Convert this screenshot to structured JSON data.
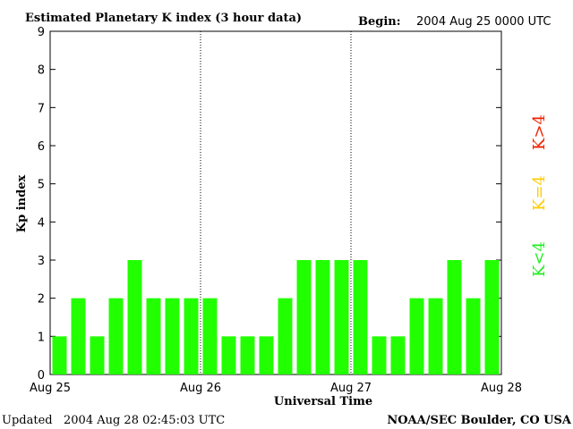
{
  "header": {
    "title": "Estimated Planetary K index (3 hour data)",
    "begin_label": "Begin:",
    "begin_value": "2004 Aug 25 0000 UTC"
  },
  "footer": {
    "updated_label": "Updated",
    "updated_value": "2004 Aug 28 02:45:03 UTC",
    "source": "NOAA/SEC Boulder, CO USA"
  },
  "legend": [
    {
      "label": "K<4",
      "color": "#22ee22"
    },
    {
      "label": "K=4",
      "color": "#ffcc00"
    },
    {
      "label": "K>4",
      "color": "#ee2200"
    }
  ],
  "chart_data": {
    "type": "bar",
    "title": "Estimated Planetary K index (3 hour data)",
    "xlabel": "Universal Time",
    "ylabel": "Kp index",
    "ylim": [
      0,
      9
    ],
    "yticks": [
      0,
      1,
      2,
      3,
      4,
      5,
      6,
      7,
      8,
      9
    ],
    "xticks": [
      "Aug 25",
      "Aug 26",
      "Aug 27",
      "Aug 28"
    ],
    "bar_color": "#22ff00",
    "values": [
      1,
      2,
      1,
      2,
      3,
      2,
      2,
      2,
      2,
      1,
      1,
      1,
      2,
      3,
      3,
      3,
      3,
      1,
      1,
      2,
      2,
      3,
      2,
      3
    ]
  }
}
